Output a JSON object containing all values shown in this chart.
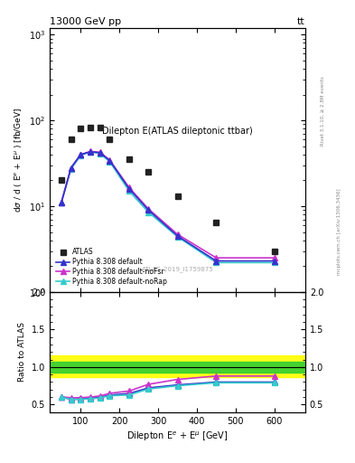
{
  "title_left": "13000 GeV pp",
  "title_right": "tt",
  "plot_title": "Dilepton E(ATLAS dileptonic ttbar)",
  "watermark": "ATLAS_2019_I1759875",
  "rivet_label": "Rivet 3.1.10, ≥ 2.8M events",
  "arxiv_label": "mcplots.cern.ch [arXiv:1306.3436]",
  "atlas_x": [
    50,
    75,
    100,
    125,
    150,
    175,
    225,
    275,
    350,
    450,
    600
  ],
  "atlas_y": [
    20,
    60,
    80,
    82,
    83,
    60,
    35,
    25,
    13,
    6.5,
    3.0
  ],
  "mc_x": [
    50,
    75,
    100,
    125,
    150,
    175,
    225,
    275,
    350,
    450,
    600
  ],
  "default_y": [
    11.0,
    28.0,
    40.0,
    43.0,
    42.0,
    34.0,
    16.0,
    9.0,
    4.5,
    2.3,
    2.3
  ],
  "noFsr_y": [
    11.0,
    28.0,
    40.0,
    43.5,
    42.5,
    34.5,
    16.5,
    9.3,
    4.7,
    2.5,
    2.5
  ],
  "noRap_y": [
    11.0,
    27.0,
    39.0,
    43.0,
    41.0,
    33.0,
    15.0,
    8.5,
    4.4,
    2.2,
    2.2
  ],
  "ratio_x": [
    50,
    75,
    100,
    125,
    150,
    175,
    225,
    275,
    350,
    450,
    600
  ],
  "ratio_default": [
    0.6,
    0.57,
    0.575,
    0.583,
    0.597,
    0.627,
    0.647,
    0.722,
    0.762,
    0.8,
    0.8
  ],
  "ratio_noFsr": [
    0.605,
    0.59,
    0.592,
    0.6,
    0.615,
    0.65,
    0.68,
    0.77,
    0.835,
    0.88,
    0.88
  ],
  "ratio_noRap": [
    0.6,
    0.57,
    0.57,
    0.577,
    0.588,
    0.618,
    0.627,
    0.708,
    0.75,
    0.79,
    0.79
  ],
  "band_green_lo": 0.93,
  "band_green_hi": 1.07,
  "band_yellow_lo": 0.87,
  "band_yellow_hi": 1.15,
  "color_default": "#3333cc",
  "color_noFsr": "#cc33cc",
  "color_noRap": "#33cccc",
  "color_atlas": "#222222",
  "ylim_main": [
    1,
    1200
  ],
  "ylim_ratio": [
    0.4,
    2.0
  ],
  "xlim": [
    20,
    680
  ]
}
